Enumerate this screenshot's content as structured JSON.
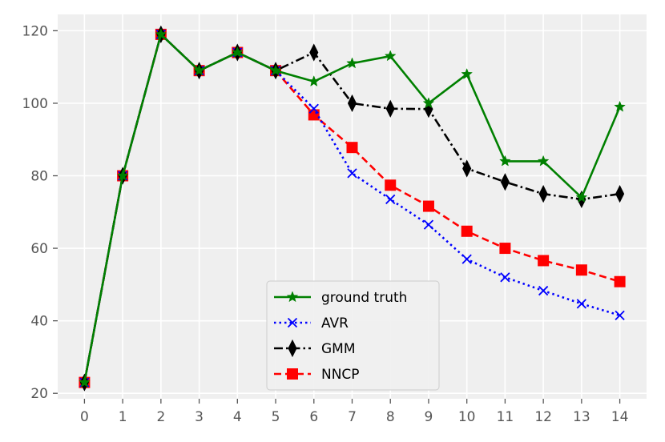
{
  "chart_data": {
    "type": "line",
    "x": [
      0,
      1,
      2,
      3,
      4,
      5,
      6,
      7,
      8,
      9,
      10,
      11,
      12,
      13,
      14
    ],
    "xlim": [
      -0.7,
      14.7
    ],
    "ylim": [
      18.5,
      124.5
    ],
    "xticks": [
      "0",
      "1",
      "2",
      "3",
      "4",
      "5",
      "6",
      "7",
      "8",
      "9",
      "10",
      "11",
      "12",
      "13",
      "14"
    ],
    "yticks": [
      20,
      40,
      60,
      80,
      100,
      120
    ],
    "grid": true,
    "legend_position": "lower-center",
    "title": "",
    "xlabel": "",
    "ylabel": "",
    "series": [
      {
        "name": "ground truth",
        "color": "#008000",
        "line_style": "solid",
        "marker": "star",
        "values": [
          23,
          80,
          119,
          109,
          114,
          109,
          106,
          111,
          113,
          100,
          108,
          84,
          84,
          74,
          99
        ]
      },
      {
        "name": "AVR",
        "color": "#0000ff",
        "line_style": "dotted",
        "marker": "x",
        "values": [
          23,
          80,
          119,
          109,
          114,
          109,
          98.5,
          80.7,
          73.5,
          66.5,
          57,
          52,
          48.3,
          44.7,
          41.5
        ]
      },
      {
        "name": "GMM",
        "color": "#000000",
        "line_style": "dashdot",
        "marker": "thin-diamond",
        "values": [
          23,
          80,
          119,
          109,
          114,
          109,
          114,
          100,
          98.5,
          98.4,
          82,
          78.3,
          75,
          73.5,
          75
        ]
      },
      {
        "name": "NNCP",
        "color": "#ff0000",
        "line_style": "dashed",
        "marker": "square",
        "values": [
          23,
          80,
          119,
          109,
          114,
          109,
          96.8,
          87.8,
          77.4,
          71.6,
          64.7,
          60,
          56.6,
          54,
          50.8
        ]
      }
    ]
  }
}
